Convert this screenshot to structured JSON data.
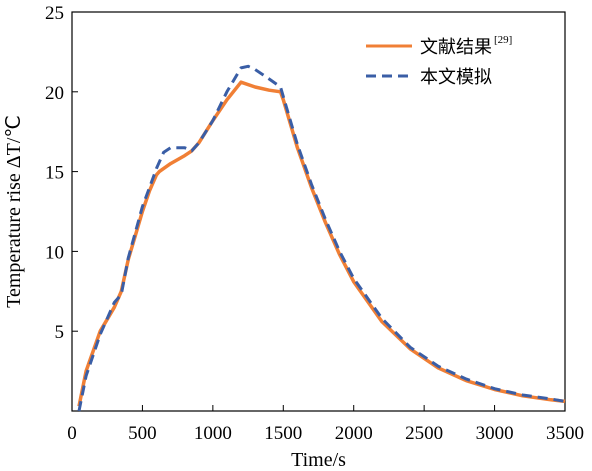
{
  "chart_data": {
    "type": "line",
    "xlabel": "Time/s",
    "ylabel": "Temperature rise ΔT/℃",
    "xlim": [
      0,
      3500
    ],
    "ylim": [
      0,
      25
    ],
    "xticks": [
      0,
      500,
      1000,
      1500,
      2000,
      2500,
      3000,
      3500
    ],
    "yticks": [
      5,
      10,
      15,
      20,
      25
    ],
    "grid": false,
    "legend_position": "top-right",
    "series": [
      {
        "name": "文献结果",
        "name_superscript": "[29]",
        "color": "#f07f35",
        "style": "solid",
        "x": [
          50,
          100,
          200,
          300,
          350,
          400,
          450,
          500,
          550,
          600,
          620,
          700,
          800,
          850,
          900,
          1000,
          1100,
          1200,
          1300,
          1400,
          1480,
          1500,
          1600,
          1700,
          1800,
          1900,
          2000,
          2200,
          2400,
          2600,
          2800,
          3000,
          3200,
          3400,
          3500
        ],
        "y": [
          0.3,
          2.5,
          5.0,
          6.5,
          7.5,
          9.5,
          11.0,
          12.5,
          13.8,
          14.8,
          15.0,
          15.5,
          16.0,
          16.3,
          16.8,
          18.2,
          19.5,
          20.6,
          20.3,
          20.1,
          20.0,
          19.5,
          16.5,
          14.0,
          11.8,
          9.8,
          8.1,
          5.6,
          3.9,
          2.7,
          1.9,
          1.35,
          0.95,
          0.7,
          0.6
        ]
      },
      {
        "name": "本文模拟",
        "color": "#3a5ea6",
        "style": "dashed",
        "x": [
          50,
          100,
          200,
          300,
          350,
          400,
          450,
          500,
          550,
          600,
          650,
          700,
          800,
          850,
          900,
          1000,
          1100,
          1200,
          1250,
          1300,
          1400,
          1480,
          1500,
          1600,
          1700,
          1800,
          1900,
          2000,
          2200,
          2400,
          2600,
          2800,
          3000,
          3200,
          3400,
          3500
        ],
        "y": [
          0,
          2.2,
          4.8,
          6.8,
          7.3,
          9.6,
          11.2,
          12.8,
          14.0,
          15.2,
          16.2,
          16.5,
          16.5,
          16.3,
          16.8,
          18.2,
          20.0,
          21.5,
          21.6,
          21.4,
          20.8,
          20.3,
          19.7,
          16.7,
          14.2,
          12.0,
          10.0,
          8.3,
          5.8,
          4.0,
          2.8,
          2.0,
          1.4,
          1.0,
          0.75,
          0.6
        ]
      }
    ]
  }
}
